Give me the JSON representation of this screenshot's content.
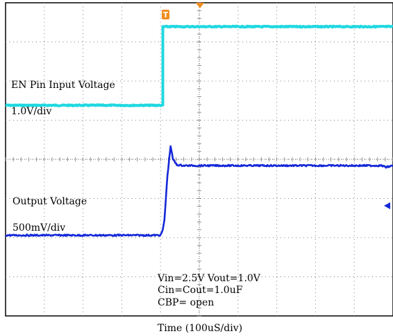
{
  "chart_data": {
    "type": "line",
    "title": "",
    "xlabel": "Time (100uS/div)",
    "ylabel": "",
    "grid": true,
    "x_divisions": 10,
    "y_divisions": 8,
    "trigger_marker": "T",
    "colors": {
      "ch1": "#20d8e0",
      "ch2": "#1428d8",
      "trigger": "#f28c1e",
      "grid": "#7a7a7a"
    },
    "channels": [
      {
        "label": "EN Pin Input Voltage",
        "scale": "1.0V/div",
        "color": "#20d8e0",
        "points_div": [
          [
            0,
            1.38
          ],
          [
            4.06,
            1.38
          ],
          [
            4.06,
            3.39
          ],
          [
            10,
            3.39
          ]
        ]
      },
      {
        "label": "Output Voltage",
        "scale": "500mV/div",
        "color": "#1428d8",
        "points_div": [
          [
            0,
            -1.94
          ],
          [
            4.0,
            -1.94
          ],
          [
            4.06,
            -1.8
          ],
          [
            4.1,
            -1.55
          ],
          [
            4.18,
            -0.4
          ],
          [
            4.26,
            0.35
          ],
          [
            4.32,
            0.0
          ],
          [
            4.42,
            -0.14
          ],
          [
            4.6,
            -0.16
          ],
          [
            9.7,
            -0.16
          ],
          [
            9.82,
            -0.2
          ],
          [
            10,
            -0.16
          ]
        ]
      }
    ],
    "annotations": [
      "Vin=2.5V  Vout=1.0V",
      "Cin=Cout=1.0uF",
      "CBP= open"
    ]
  }
}
